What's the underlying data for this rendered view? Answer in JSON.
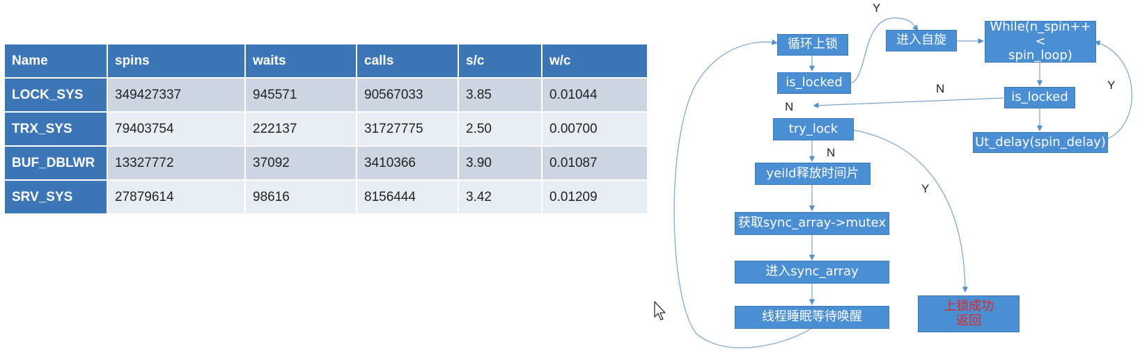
{
  "table": {
    "headers": [
      "Name",
      "spins",
      "waits",
      "calls",
      "s/c",
      "w/c"
    ],
    "rows": [
      [
        "LOCK_SYS",
        "349427337",
        "945571",
        "90567033",
        "3.85",
        "0.01044"
      ],
      [
        "TRX_SYS",
        "79403754",
        "222137",
        "31727775",
        "2.50",
        "0.00700"
      ],
      [
        "BUF_DBLWR",
        "13327772",
        "37092",
        "3410366",
        "3.90",
        "0.01087"
      ],
      [
        "SRV_SYS",
        "27879614",
        "98616",
        "8156444",
        "3.42",
        "0.01209"
      ]
    ]
  },
  "flowchart": {
    "nodes": {
      "loop_lock": "循环上锁",
      "is_locked_1": "is_locked",
      "try_lock": "try_lock",
      "yield": "yeild释放时间片",
      "get_mutex": "获取sync_array->mutex",
      "enter_sync": "进入sync_array",
      "thread_sleep": "线程睡眠等待唤醒",
      "enter_spin": "进入自旋",
      "while_spin": "While(n_spin++<\nspin_loop)",
      "is_locked_2": "is_locked",
      "ut_delay": "Ut_delay(spin_delay)",
      "lock_success": "上锁成功\n返回"
    },
    "edge_labels": {
      "y_top": "Y",
      "n_is_locked_2": "N",
      "y_right": "Y",
      "n_left": "N",
      "n_try_lock": "N",
      "y_try_lock": "Y"
    },
    "colors": {
      "node_fill": "#4a8fd4",
      "header_fill": "#3d76b6",
      "success_text": "#e0261e"
    }
  }
}
